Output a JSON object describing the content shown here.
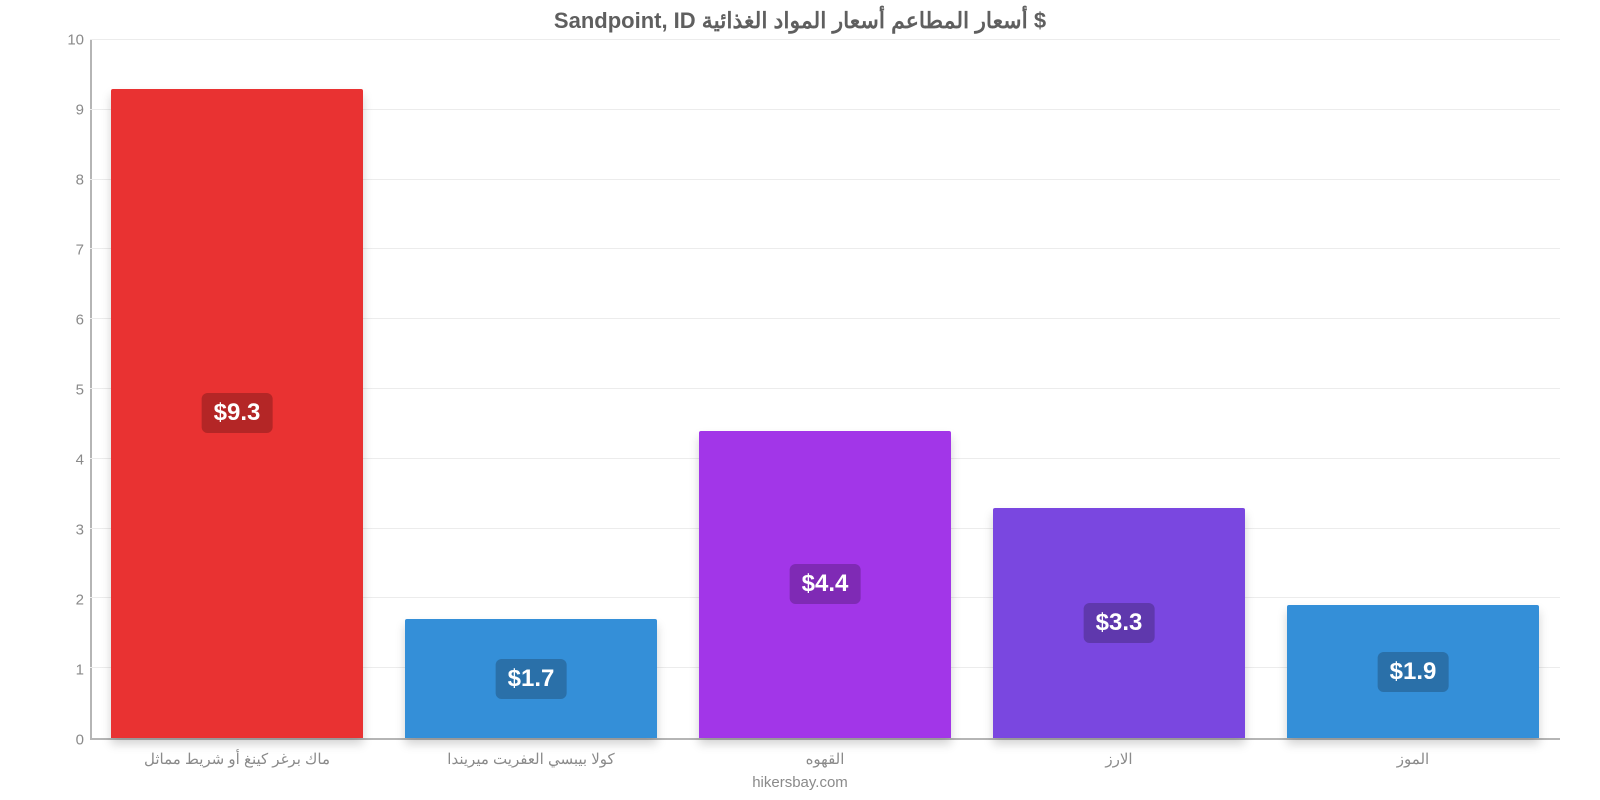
{
  "chart": {
    "type": "bar",
    "title": "$ أسعار المطاعم أسعار المواد الغذائية Sandpoint, ID",
    "title_fontsize": 22,
    "title_color": "#5f5f5f",
    "footer": "hikersbay.com",
    "background_color": "#ffffff",
    "grid_color": "#ececec",
    "axis_color": "#b5b5b5",
    "tick_font_color": "#8a8a8a",
    "tick_fontsize": 15,
    "ylim_min": 0,
    "ylim_max": 10,
    "ytick_step": 1,
    "yticks": [
      "0",
      "1",
      "2",
      "3",
      "4",
      "5",
      "6",
      "7",
      "8",
      "9",
      "10"
    ],
    "bar_width_pct": 17.2,
    "bar_gap_pct": 2.8,
    "value_badge_fontsize": 24,
    "categories": [
      {
        "label": "ماك برغر كينغ أو شريط مماثل",
        "value": 9.3,
        "display": "$9.3",
        "bar_color": "#e93232",
        "badge_color": "#b42626"
      },
      {
        "label": "كولا بيبسي العفريت ميريندا",
        "value": 1.7,
        "display": "$1.7",
        "bar_color": "#348fd8",
        "badge_color": "#2a70a9"
      },
      {
        "label": "القهوه",
        "value": 4.4,
        "display": "$4.4",
        "bar_color": "#a236e8",
        "badge_color": "#7f2ab5"
      },
      {
        "label": "الارز",
        "value": 3.3,
        "display": "$3.3",
        "bar_color": "#7a47e0",
        "badge_color": "#5f38ad"
      },
      {
        "label": "الموز",
        "value": 1.9,
        "display": "$1.9",
        "bar_color": "#348fd8",
        "badge_color": "#2a70a9"
      }
    ]
  }
}
